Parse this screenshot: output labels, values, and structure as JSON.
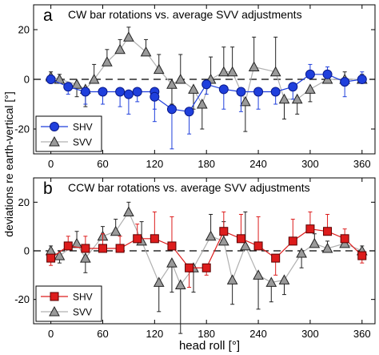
{
  "figure": {
    "ylabel": "deviations re earth-vertical [°]",
    "xlabel": "head roll [°]"
  },
  "chart_data": [
    {
      "panel_letter": "a",
      "type": "line",
      "title": "CW bar rotations vs. average SVV adjustments",
      "xlim": [
        -20,
        375
      ],
      "ylim": [
        -30,
        30
      ],
      "x_ticks": [
        0,
        60,
        120,
        180,
        240,
        300,
        360
      ],
      "y_ticks": [
        -20,
        0,
        20
      ],
      "grid": false,
      "reference_line": 0,
      "legend_position": "bottom-left",
      "series": [
        {
          "name": "SHV",
          "marker": "circle",
          "color": "#1f3fdc",
          "points": [
            {
              "x": 0,
              "y": 0,
              "err": 1
            },
            {
              "x": 20,
              "y": -3,
              "err": 3
            },
            {
              "x": 40,
              "y": -5,
              "err": 5
            },
            {
              "x": 60,
              "y": -5,
              "err": 5
            },
            {
              "x": 90,
              "y": -6,
              "err": 8
            },
            {
              "x": 120,
              "y": -5,
              "err": 7
            },
            {
              "x": 80,
              "y": -5,
              "err": 6
            },
            {
              "x": 100,
              "y": -5,
              "err": 4
            },
            {
              "x": 120,
              "y": -7,
              "err": 10
            },
            {
              "x": 140,
              "y": -12,
              "err": 16
            },
            {
              "x": 160,
              "y": -13,
              "err": 9
            },
            {
              "x": 180,
              "y": -2,
              "err": 4
            },
            {
              "x": 200,
              "y": -4,
              "err": 8
            },
            {
              "x": 220,
              "y": -5,
              "err": 8
            },
            {
              "x": 240,
              "y": -5,
              "err": 7
            },
            {
              "x": 260,
              "y": -5,
              "err": 5
            },
            {
              "x": 280,
              "y": -3,
              "err": 5
            },
            {
              "x": 300,
              "y": 2,
              "err": 4
            },
            {
              "x": 320,
              "y": 2,
              "err": 3
            },
            {
              "x": 340,
              "y": -1,
              "err": 6
            },
            {
              "x": 360,
              "y": 0,
              "err": 3
            }
          ]
        },
        {
          "name": "SVV",
          "marker": "triangle",
          "color": "#9a9a9a",
          "points": [
            {
              "x": 0,
              "y": 1,
              "err": 2
            },
            {
              "x": 10,
              "y": 0,
              "err": 2
            },
            {
              "x": 30,
              "y": -2,
              "err": 5
            },
            {
              "x": 40,
              "y": -4,
              "err": 7
            },
            {
              "x": 50,
              "y": 0,
              "err": 6
            },
            {
              "x": 65,
              "y": 7,
              "err": 5
            },
            {
              "x": 80,
              "y": 12,
              "err": 4
            },
            {
              "x": 90,
              "y": 17,
              "err": 4
            },
            {
              "x": 110,
              "y": 11,
              "err": 5
            },
            {
              "x": 125,
              "y": 4,
              "err": 6
            },
            {
              "x": 140,
              "y": -2,
              "err": 8
            },
            {
              "x": 150,
              "y": 0,
              "err": 10
            },
            {
              "x": 165,
              "y": -4,
              "err": 8
            },
            {
              "x": 175,
              "y": -10,
              "err": 10
            },
            {
              "x": 185,
              "y": 0,
              "err": 9
            },
            {
              "x": 200,
              "y": 3,
              "err": 10
            },
            {
              "x": 210,
              "y": 3,
              "err": 10
            },
            {
              "x": 225,
              "y": -9,
              "err": 12
            },
            {
              "x": 235,
              "y": 5,
              "err": 12
            },
            {
              "x": 260,
              "y": 3,
              "err": 14
            },
            {
              "x": 270,
              "y": -8,
              "err": 8
            },
            {
              "x": 285,
              "y": -8,
              "err": 6
            },
            {
              "x": 300,
              "y": -4,
              "err": 5
            },
            {
              "x": 320,
              "y": 0,
              "err": 3
            },
            {
              "x": 340,
              "y": 0,
              "err": 3
            },
            {
              "x": 360,
              "y": 0,
              "err": 2
            }
          ]
        }
      ]
    },
    {
      "panel_letter": "b",
      "type": "line",
      "title": "CCW bar rotations vs. average SVV adjustments",
      "xlim": [
        -20,
        375
      ],
      "ylim": [
        -30,
        30
      ],
      "x_ticks": [
        0,
        60,
        120,
        180,
        240,
        300,
        360
      ],
      "y_ticks": [
        -20,
        0,
        20
      ],
      "grid": false,
      "reference_line": 0,
      "legend_position": "bottom-left",
      "series": [
        {
          "name": "SHV",
          "marker": "square",
          "color": "#dd1c1c",
          "points": [
            {
              "x": 0,
              "y": -3,
              "err": 3
            },
            {
              "x": 20,
              "y": 2,
              "err": 4
            },
            {
              "x": 40,
              "y": 1,
              "err": 5
            },
            {
              "x": 60,
              "y": 1,
              "err": 6
            },
            {
              "x": 80,
              "y": 1,
              "err": 5
            },
            {
              "x": 100,
              "y": 5,
              "err": 6
            },
            {
              "x": 120,
              "y": 5,
              "err": 11
            },
            {
              "x": 140,
              "y": 2,
              "err": 12
            },
            {
              "x": 160,
              "y": -7,
              "err": 8
            },
            {
              "x": 180,
              "y": -7,
              "err": 3
            },
            {
              "x": 200,
              "y": 8,
              "err": 8
            },
            {
              "x": 220,
              "y": 5,
              "err": 10
            },
            {
              "x": 240,
              "y": 2,
              "err": 12
            },
            {
              "x": 260,
              "y": -3,
              "err": 7
            },
            {
              "x": 280,
              "y": 4,
              "err": 9
            },
            {
              "x": 300,
              "y": 9,
              "err": 7
            },
            {
              "x": 320,
              "y": 8,
              "err": 7
            },
            {
              "x": 340,
              "y": 5,
              "err": 4
            },
            {
              "x": 360,
              "y": -2,
              "err": 3
            }
          ]
        },
        {
          "name": "SVV",
          "marker": "triangle",
          "color": "#9a9a9a",
          "points": [
            {
              "x": 0,
              "y": 0,
              "err": 2
            },
            {
              "x": 10,
              "y": -2,
              "err": 3
            },
            {
              "x": 30,
              "y": 3,
              "err": 5
            },
            {
              "x": 40,
              "y": -3,
              "err": 6
            },
            {
              "x": 60,
              "y": 6,
              "err": 4
            },
            {
              "x": 75,
              "y": 8,
              "err": 5
            },
            {
              "x": 90,
              "y": 16,
              "err": 4
            },
            {
              "x": 105,
              "y": 4,
              "err": 8
            },
            {
              "x": 125,
              "y": -13,
              "err": 12
            },
            {
              "x": 140,
              "y": -5,
              "err": 12
            },
            {
              "x": 150,
              "y": -14,
              "err": 20
            },
            {
              "x": 165,
              "y": -7,
              "err": 10
            },
            {
              "x": 185,
              "y": 6,
              "err": 9
            },
            {
              "x": 200,
              "y": 4,
              "err": 8
            },
            {
              "x": 210,
              "y": -12,
              "err": 10
            },
            {
              "x": 225,
              "y": 2,
              "err": 14
            },
            {
              "x": 240,
              "y": -10,
              "err": 14
            },
            {
              "x": 255,
              "y": -13,
              "err": 8
            },
            {
              "x": 270,
              "y": -12,
              "err": 6
            },
            {
              "x": 290,
              "y": -1,
              "err": 6
            },
            {
              "x": 305,
              "y": 3,
              "err": 4
            },
            {
              "x": 320,
              "y": 1,
              "err": 3
            },
            {
              "x": 340,
              "y": 3,
              "err": 3
            },
            {
              "x": 360,
              "y": 0,
              "err": 2
            }
          ]
        }
      ]
    }
  ]
}
